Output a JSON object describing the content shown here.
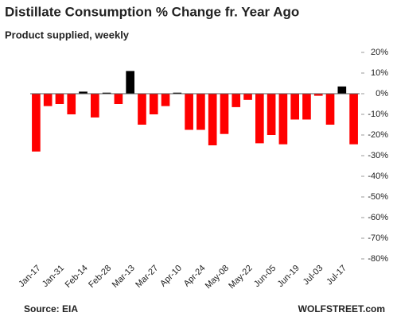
{
  "chart_data": {
    "type": "bar",
    "title": "Distillate Consumption % Change fr. Year Ago",
    "subtitle": "Product supplied, weekly",
    "source": "Source: EIA",
    "brand": "WOLFSTREET.com",
    "categories": [
      "Jan-17",
      null,
      "Jan-31",
      null,
      "Feb-14",
      null,
      "Feb-28",
      null,
      "Mar-13",
      null,
      "Mar-27",
      null,
      "Apr-10",
      null,
      "Apr-24",
      null,
      "May-08",
      null,
      "May-22",
      null,
      "Jun-05",
      null,
      "Jun-19",
      null,
      "Jul-03",
      null,
      "Jul-17",
      null
    ],
    "values": [
      -28,
      -6,
      -5,
      -10,
      1,
      -11.5,
      0.5,
      -5,
      11,
      -15,
      -10,
      -6,
      0.5,
      -17.5,
      -17.5,
      -25,
      -19.5,
      -6.5,
      -3,
      -24,
      -20,
      -24.5,
      -12.5,
      -12.5,
      -1,
      -15,
      3.5,
      -24.5
    ],
    "color": "#ff0000",
    "positive_color": "#000000",
    "ylim": [
      -80,
      20
    ],
    "yticks": [
      {
        "value": -80,
        "label": "-80%"
      },
      {
        "value": -70,
        "label": "-70%"
      },
      {
        "value": -60,
        "label": "-60%"
      },
      {
        "value": -50,
        "label": "-50%"
      },
      {
        "value": -40,
        "label": "-40%"
      },
      {
        "value": -30,
        "label": "-30%"
      },
      {
        "value": -20,
        "label": "-20%"
      },
      {
        "value": -10,
        "label": "-10%"
      },
      {
        "value": 0,
        "label": "0%"
      },
      {
        "value": 10,
        "label": "10%"
      },
      {
        "value": 20,
        "label": "20%"
      }
    ],
    "grid": false
  }
}
